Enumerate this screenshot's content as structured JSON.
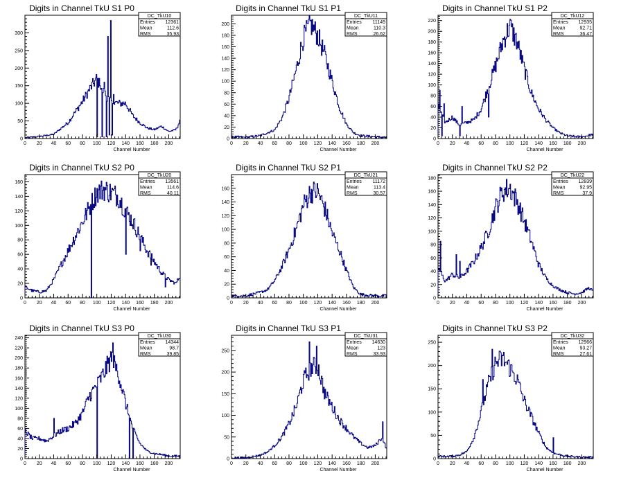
{
  "chart_data": [
    {
      "type": "histogram",
      "title": "Digits in Channel TkU S1 P0",
      "xlabel": "Channel Number",
      "ylabel": "",
      "xlim": [
        0,
        216
      ],
      "ylim": [
        0,
        350
      ],
      "x_ticks": [
        0,
        20,
        40,
        60,
        80,
        100,
        120,
        140,
        160,
        180,
        200
      ],
      "y_ticks": [
        0,
        50,
        100,
        150,
        200,
        250,
        300
      ],
      "stats": {
        "name": "DC_TkU10",
        "rows": [
          {
            "label": "Entries",
            "value": "12361"
          },
          {
            "label": "Mean",
            "value": "112.6"
          },
          {
            "label": "RMS",
            "value": "35.93"
          }
        ]
      },
      "profile": [
        [
          0,
          2
        ],
        [
          20,
          6
        ],
        [
          40,
          12
        ],
        [
          60,
          45
        ],
        [
          70,
          75
        ],
        [
          80,
          105
        ],
        [
          90,
          140
        ],
        [
          100,
          170
        ],
        [
          110,
          130
        ],
        [
          120,
          105
        ],
        [
          130,
          100
        ],
        [
          140,
          100
        ],
        [
          150,
          65
        ],
        [
          160,
          45
        ],
        [
          170,
          30
        ],
        [
          180,
          25
        ],
        [
          190,
          35
        ],
        [
          200,
          20
        ],
        [
          210,
          25
        ],
        [
          216,
          50
        ]
      ],
      "spikes": [
        [
          100,
          5
        ],
        [
          104,
          150
        ],
        [
          107,
          5
        ],
        [
          110,
          160
        ],
        [
          113,
          5
        ],
        [
          115,
          290
        ],
        [
          117,
          10
        ],
        [
          119,
          335
        ],
        [
          121,
          10
        ],
        [
          123,
          125
        ]
      ]
    },
    {
      "type": "histogram",
      "title": "Digits in Channel TkU S1 P1",
      "xlabel": "Channel Number",
      "ylabel": "",
      "xlim": [
        0,
        216
      ],
      "ylim": [
        0,
        215
      ],
      "x_ticks": [
        0,
        20,
        40,
        60,
        80,
        100,
        120,
        140,
        160,
        180,
        200
      ],
      "y_ticks": [
        0,
        20,
        40,
        60,
        80,
        100,
        120,
        140,
        160,
        180,
        200
      ],
      "stats": {
        "name": "DC_TkU11",
        "rows": [
          {
            "label": "Entries",
            "value": "11149"
          },
          {
            "label": "Mean",
            "value": "110.3"
          },
          {
            "label": "RMS",
            "value": "26.62"
          }
        ]
      },
      "profile": [
        [
          0,
          3
        ],
        [
          20,
          2
        ],
        [
          40,
          5
        ],
        [
          60,
          15
        ],
        [
          70,
          35
        ],
        [
          80,
          70
        ],
        [
          90,
          120
        ],
        [
          100,
          175
        ],
        [
          110,
          200
        ],
        [
          120,
          180
        ],
        [
          130,
          145
        ],
        [
          140,
          100
        ],
        [
          150,
          55
        ],
        [
          160,
          25
        ],
        [
          170,
          10
        ],
        [
          180,
          5
        ],
        [
          200,
          3
        ],
        [
          216,
          2
        ]
      ],
      "spikes": []
    },
    {
      "type": "histogram",
      "title": "Digits in Channel TkU S1 P2",
      "xlabel": "Channel Number",
      "ylabel": "",
      "xlim": [
        0,
        216
      ],
      "ylim": [
        0,
        230
      ],
      "x_ticks": [
        0,
        20,
        40,
        60,
        80,
        100,
        120,
        140,
        160,
        180,
        200
      ],
      "y_ticks": [
        0,
        20,
        40,
        60,
        80,
        100,
        120,
        140,
        160,
        180,
        200,
        220
      ],
      "stats": {
        "name": "DC_TkU12",
        "rows": [
          {
            "label": "Entries",
            "value": "12935"
          },
          {
            "label": "Mean",
            "value": "92.71"
          },
          {
            "label": "RMS",
            "value": "36.47"
          }
        ]
      },
      "profile": [
        [
          0,
          60
        ],
        [
          10,
          30
        ],
        [
          20,
          40
        ],
        [
          30,
          25
        ],
        [
          40,
          30
        ],
        [
          50,
          35
        ],
        [
          60,
          55
        ],
        [
          70,
          95
        ],
        [
          80,
          135
        ],
        [
          90,
          180
        ],
        [
          100,
          210
        ],
        [
          110,
          180
        ],
        [
          120,
          130
        ],
        [
          130,
          85
        ],
        [
          140,
          55
        ],
        [
          150,
          35
        ],
        [
          160,
          20
        ],
        [
          170,
          10
        ],
        [
          180,
          5
        ],
        [
          200,
          3
        ],
        [
          216,
          8
        ]
      ],
      "spikes": [
        [
          2,
          90
        ],
        [
          5,
          5
        ],
        [
          8,
          65
        ],
        [
          30,
          5
        ],
        [
          33,
          60
        ],
        [
          70,
          40
        ]
      ]
    },
    {
      "type": "histogram",
      "title": "Digits in Channel TkU S2 P0",
      "xlabel": "Channel Number",
      "ylabel": "",
      "xlim": [
        0,
        216
      ],
      "ylim": [
        0,
        170
      ],
      "x_ticks": [
        0,
        20,
        40,
        60,
        80,
        100,
        120,
        140,
        160,
        180,
        200
      ],
      "y_ticks": [
        0,
        20,
        40,
        60,
        80,
        100,
        120,
        140,
        160
      ],
      "stats": {
        "name": "DC_TkU20",
        "rows": [
          {
            "label": "Entries",
            "value": "13561"
          },
          {
            "label": "Mean",
            "value": "114.6"
          },
          {
            "label": "RMS",
            "value": "40.11"
          }
        ]
      },
      "profile": [
        [
          0,
          15
        ],
        [
          10,
          10
        ],
        [
          20,
          8
        ],
        [
          30,
          10
        ],
        [
          40,
          25
        ],
        [
          50,
          45
        ],
        [
          60,
          65
        ],
        [
          70,
          85
        ],
        [
          80,
          105
        ],
        [
          90,
          125
        ],
        [
          100,
          145
        ],
        [
          110,
          150
        ],
        [
          120,
          145
        ],
        [
          130,
          140
        ],
        [
          140,
          120
        ],
        [
          150,
          105
        ],
        [
          160,
          85
        ],
        [
          170,
          65
        ],
        [
          180,
          50
        ],
        [
          190,
          35
        ],
        [
          200,
          25
        ],
        [
          210,
          20
        ],
        [
          216,
          30
        ]
      ],
      "spikes": [
        [
          92,
          0
        ],
        [
          140,
          60
        ],
        [
          160,
          65
        ],
        [
          175,
          45
        ],
        [
          195,
          15
        ]
      ]
    },
    {
      "type": "histogram",
      "title": "Digits in Channel TkU S2 P1",
      "xlabel": "Channel Number",
      "ylabel": "",
      "xlim": [
        0,
        216
      ],
      "ylim": [
        0,
        180
      ],
      "x_ticks": [
        0,
        20,
        40,
        60,
        80,
        100,
        120,
        140,
        160,
        180,
        200
      ],
      "y_ticks": [
        0,
        20,
        40,
        60,
        80,
        100,
        120,
        140,
        160
      ],
      "stats": {
        "name": "DC_TkU21",
        "rows": [
          {
            "label": "Entries",
            "value": "11172"
          },
          {
            "label": "Mean",
            "value": "113.4"
          },
          {
            "label": "RMS",
            "value": "30.57"
          }
        ]
      },
      "profile": [
        [
          0,
          3
        ],
        [
          20,
          3
        ],
        [
          40,
          8
        ],
        [
          50,
          12
        ],
        [
          60,
          25
        ],
        [
          70,
          45
        ],
        [
          80,
          70
        ],
        [
          90,
          100
        ],
        [
          100,
          135
        ],
        [
          110,
          155
        ],
        [
          120,
          155
        ],
        [
          130,
          130
        ],
        [
          140,
          95
        ],
        [
          150,
          70
        ],
        [
          160,
          40
        ],
        [
          170,
          15
        ],
        [
          180,
          5
        ],
        [
          200,
          3
        ],
        [
          216,
          3
        ]
      ],
      "spikes": []
    },
    {
      "type": "histogram",
      "title": "Digits in Channel TkU S2 P2",
      "xlabel": "Channel Number",
      "ylabel": "",
      "xlim": [
        0,
        216
      ],
      "ylim": [
        0,
        185
      ],
      "x_ticks": [
        0,
        20,
        40,
        60,
        80,
        100,
        120,
        140,
        160,
        180,
        200
      ],
      "y_ticks": [
        0,
        20,
        40,
        60,
        80,
        100,
        120,
        140,
        160,
        180
      ],
      "stats": {
        "name": "DC_TkU22",
        "rows": [
          {
            "label": "Entries",
            "value": "12839"
          },
          {
            "label": "Mean",
            "value": "92.95"
          },
          {
            "label": "RMS",
            "value": "37.9"
          }
        ]
      },
      "profile": [
        [
          0,
          45
        ],
        [
          10,
          25
        ],
        [
          20,
          35
        ],
        [
          30,
          30
        ],
        [
          40,
          40
        ],
        [
          50,
          55
        ],
        [
          60,
          75
        ],
        [
          70,
          100
        ],
        [
          80,
          135
        ],
        [
          90,
          160
        ],
        [
          100,
          165
        ],
        [
          110,
          145
        ],
        [
          120,
          115
        ],
        [
          130,
          85
        ],
        [
          140,
          50
        ],
        [
          150,
          30
        ],
        [
          160,
          18
        ],
        [
          170,
          12
        ],
        [
          180,
          8
        ],
        [
          190,
          6
        ],
        [
          200,
          8
        ],
        [
          210,
          15
        ],
        [
          216,
          10
        ]
      ],
      "spikes": [
        [
          3,
          85
        ],
        [
          25,
          65
        ],
        [
          30,
          55
        ]
      ]
    },
    {
      "type": "histogram",
      "title": "Digits in Channel TkU S3 P0",
      "xlabel": "Channel Number",
      "ylabel": "",
      "xlim": [
        0,
        216
      ],
      "ylim": [
        0,
        245
      ],
      "x_ticks": [
        0,
        20,
        40,
        60,
        80,
        100,
        120,
        140,
        160,
        180,
        200
      ],
      "y_ticks": [
        0,
        20,
        40,
        60,
        80,
        100,
        120,
        140,
        160,
        180,
        200,
        220,
        240
      ],
      "stats": {
        "name": "DC_TkU30",
        "rows": [
          {
            "label": "Entries",
            "value": "14344"
          },
          {
            "label": "Mean",
            "value": "98.7"
          },
          {
            "label": "RMS",
            "value": "39.85"
          }
        ]
      },
      "profile": [
        [
          0,
          55
        ],
        [
          10,
          40
        ],
        [
          20,
          40
        ],
        [
          30,
          35
        ],
        [
          40,
          45
        ],
        [
          50,
          55
        ],
        [
          60,
          60
        ],
        [
          70,
          70
        ],
        [
          80,
          90
        ],
        [
          90,
          125
        ],
        [
          100,
          145
        ],
        [
          110,
          170
        ],
        [
          120,
          200
        ],
        [
          130,
          170
        ],
        [
          140,
          110
        ],
        [
          150,
          60
        ],
        [
          160,
          30
        ],
        [
          170,
          15
        ],
        [
          180,
          10
        ],
        [
          190,
          8
        ],
        [
          200,
          5
        ],
        [
          216,
          5
        ]
      ],
      "spikes": [
        [
          40,
          80
        ],
        [
          100,
          0
        ],
        [
          122,
          230
        ],
        [
          145,
          0
        ],
        [
          150,
          0
        ]
      ]
    },
    {
      "type": "histogram",
      "title": "Digits in Channel TkU S3 P1",
      "xlabel": "Channel Number",
      "ylabel": "",
      "xlim": [
        0,
        216
      ],
      "ylim": [
        0,
        285
      ],
      "x_ticks": [
        0,
        20,
        40,
        60,
        80,
        100,
        120,
        140,
        160,
        180,
        200
      ],
      "y_ticks": [
        0,
        50,
        100,
        150,
        200,
        250
      ],
      "stats": {
        "name": "DC_TkU31",
        "rows": [
          {
            "label": "Entries",
            "value": "14630"
          },
          {
            "label": "Mean",
            "value": "123"
          },
          {
            "label": "RMS",
            "value": "33.93"
          }
        ]
      },
      "profile": [
        [
          0,
          2
        ],
        [
          20,
          2
        ],
        [
          40,
          8
        ],
        [
          50,
          15
        ],
        [
          60,
          30
        ],
        [
          70,
          50
        ],
        [
          80,
          80
        ],
        [
          90,
          120
        ],
        [
          100,
          180
        ],
        [
          110,
          210
        ],
        [
          120,
          215
        ],
        [
          130,
          150
        ],
        [
          140,
          120
        ],
        [
          150,
          90
        ],
        [
          160,
          70
        ],
        [
          170,
          50
        ],
        [
          180,
          35
        ],
        [
          190,
          25
        ],
        [
          200,
          30
        ],
        [
          210,
          50
        ],
        [
          216,
          20
        ]
      ],
      "spikes": [
        [
          108,
          270
        ],
        [
          118,
          260
        ],
        [
          210,
          85
        ]
      ]
    },
    {
      "type": "histogram",
      "title": "Digits in Channel TkU S3 P2",
      "xlabel": "Channel Number",
      "ylabel": "",
      "xlim": [
        0,
        216
      ],
      "ylim": [
        0,
        265
      ],
      "x_ticks": [
        0,
        20,
        40,
        60,
        80,
        100,
        120,
        140,
        160,
        180,
        200
      ],
      "y_ticks": [
        0,
        50,
        100,
        150,
        200,
        250
      ],
      "stats": {
        "name": "DC_TkU32",
        "rows": [
          {
            "label": "Entries",
            "value": "12966"
          },
          {
            "label": "Mean",
            "value": "93.27"
          },
          {
            "label": "RMS",
            "value": "27.61"
          }
        ]
      },
      "profile": [
        [
          0,
          5
        ],
        [
          20,
          5
        ],
        [
          30,
          8
        ],
        [
          40,
          15
        ],
        [
          50,
          45
        ],
        [
          60,
          100
        ],
        [
          70,
          160
        ],
        [
          80,
          205
        ],
        [
          90,
          215
        ],
        [
          100,
          195
        ],
        [
          110,
          170
        ],
        [
          120,
          125
        ],
        [
          130,
          90
        ],
        [
          140,
          55
        ],
        [
          150,
          25
        ],
        [
          160,
          12
        ],
        [
          170,
          8
        ],
        [
          180,
          5
        ],
        [
          200,
          3
        ],
        [
          216,
          3
        ]
      ],
      "spikes": [
        [
          62,
          170
        ],
        [
          75,
          235
        ],
        [
          160,
          45
        ]
      ]
    }
  ]
}
